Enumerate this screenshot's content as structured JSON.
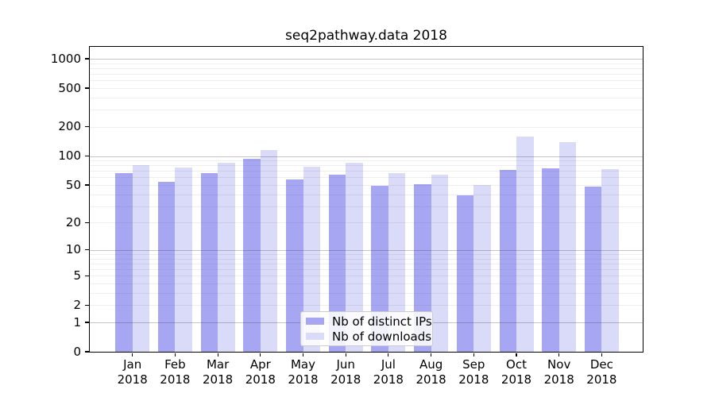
{
  "title": "seq2pathway.data 2018",
  "chart_data": {
    "type": "bar",
    "title": "seq2pathway.data 2018",
    "scale": "log10(1+x)",
    "grid": true,
    "categories": [
      "Jan",
      "Feb",
      "Mar",
      "Apr",
      "May",
      "Jun",
      "Jul",
      "Aug",
      "Sep",
      "Oct",
      "Nov",
      "Dec"
    ],
    "category_year": "2018",
    "series": [
      {
        "name": "Nb of distinct IPs",
        "color": "#a6a6f2",
        "values": [
          67,
          54,
          66,
          94,
          57,
          64,
          49,
          51,
          39,
          72,
          75,
          48
        ]
      },
      {
        "name": "Nb of downloads",
        "color": "#dadaf9",
        "values": [
          80,
          76,
          86,
          116,
          78,
          86,
          67,
          64,
          50,
          158,
          139,
          73
        ]
      }
    ],
    "y_axis": {
      "tick_labels": [
        0,
        1,
        2,
        5,
        10,
        20,
        50,
        100,
        200,
        500,
        1000
      ],
      "major_gridlines": [
        1,
        10,
        100,
        1000
      ],
      "minor_gridlines": [
        2,
        3,
        4,
        5,
        6,
        7,
        8,
        9,
        20,
        30,
        40,
        50,
        60,
        70,
        80,
        90,
        200,
        300,
        400,
        500,
        600,
        700,
        800,
        900
      ],
      "range": [
        0,
        1300
      ]
    },
    "legend": {
      "position": "bottom-center",
      "entries": [
        "Nb of distinct IPs",
        "Nb of downloads"
      ]
    }
  }
}
